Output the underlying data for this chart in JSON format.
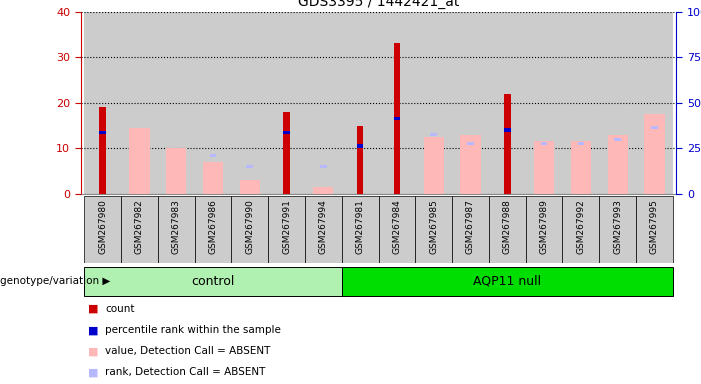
{
  "title": "GDS3395 / 1442421_at",
  "samples": [
    "GSM267980",
    "GSM267982",
    "GSM267983",
    "GSM267986",
    "GSM267990",
    "GSM267991",
    "GSM267994",
    "GSM267981",
    "GSM267984",
    "GSM267985",
    "GSM267987",
    "GSM267988",
    "GSM267989",
    "GSM267992",
    "GSM267993",
    "GSM267995"
  ],
  "control_count": 7,
  "groups": [
    "control",
    "AQP11 null"
  ],
  "red_count": [
    19,
    0,
    0,
    0,
    0,
    18,
    0,
    15,
    33,
    0,
    0,
    22,
    0,
    0,
    0,
    0
  ],
  "blue_rank_left": [
    13.5,
    0,
    0,
    0,
    0,
    13.5,
    0,
    10.5,
    16.5,
    0,
    0,
    14,
    0,
    0,
    0,
    0
  ],
  "pink_value": [
    0,
    14.5,
    10,
    7,
    3,
    0,
    1.5,
    0,
    0,
    12.5,
    13,
    0,
    11.5,
    11.5,
    13,
    17.5
  ],
  "lb_rank_left": [
    0,
    0,
    0,
    8.5,
    6,
    0,
    6,
    0,
    0,
    13,
    11,
    0,
    11,
    11,
    12,
    14.5
  ],
  "left_ylim": [
    0,
    40
  ],
  "right_ylim": [
    0,
    100
  ],
  "left_yticks": [
    0,
    10,
    20,
    30,
    40
  ],
  "right_yticks": [
    0,
    25,
    50,
    75,
    100
  ],
  "right_yticklabels": [
    "0",
    "25",
    "50",
    "75",
    "100%"
  ],
  "left_color": "#cc0000",
  "right_color": "#0000cc",
  "plot_bg": "#ffffff",
  "col_bg": "#cccccc",
  "control_color_light": "#b0f0b0",
  "control_color_dark": "#00dd00",
  "genotype_label": "genotype/variation",
  "legend_colors": [
    "#cc0000",
    "#0000cc",
    "#ffb8b8",
    "#b8b8ff"
  ],
  "legend_labels": [
    "count",
    "percentile rank within the sample",
    "value, Detection Call = ABSENT",
    "rank, Detection Call = ABSENT"
  ]
}
